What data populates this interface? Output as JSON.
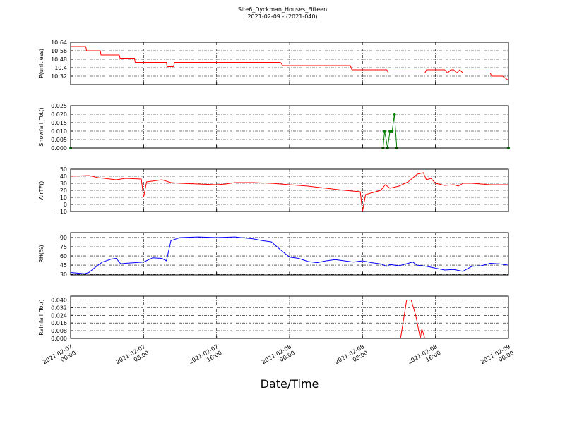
{
  "title": "Site6_Dyckman_Houses_Fifteen",
  "subtitle": "2021-02-09 - (2021-040)",
  "x_axis": {
    "label": "Date/Time",
    "xlim": [
      "2021-02-07 00:00",
      "2021-02-09 00:00"
    ],
    "xticks": [
      {
        "value": "2021-02-07 00:00",
        "label": [
          "2021-02-07",
          "00:00"
        ]
      },
      {
        "value": "2021-02-07 08:00",
        "label": [
          "2021-02-07",
          "08:00"
        ]
      },
      {
        "value": "2021-02-07 16:00",
        "label": [
          "2021-02-07",
          "16:00"
        ]
      },
      {
        "value": "2021-02-08 00:00",
        "label": [
          "2021-02-08",
          "00:00"
        ]
      },
      {
        "value": "2021-02-08 08:00",
        "label": [
          "2021-02-08",
          "08:00"
        ]
      },
      {
        "value": "2021-02-08 16:00",
        "label": [
          "2021-02-08",
          "16:00"
        ]
      },
      {
        "value": "2021-02-09 00:00",
        "label": [
          "2021-02-09",
          "00:00"
        ]
      }
    ]
  },
  "chart_data": [
    {
      "type": "line",
      "ylabel": "P(unitless)",
      "color": "#ff0000",
      "grid": true,
      "ylim": [
        10.24,
        10.64
      ],
      "yticks": [
        10.32,
        10.4,
        10.48,
        10.56,
        10.64
      ],
      "x": [
        "2021-02-07 00:00",
        "2021-02-07 01:40",
        "2021-02-07 01:45",
        "2021-02-07 03:15",
        "2021-02-07 03:20",
        "2021-02-07 05:20",
        "2021-02-07 05:25",
        "2021-02-07 07:00",
        "2021-02-07 07:05",
        "2021-02-07 10:30",
        "2021-02-07 10:35",
        "2021-02-07 11:15",
        "2021-02-07 11:25",
        "2021-02-07 23:00",
        "2021-02-07 23:15",
        "2021-02-08 06:40",
        "2021-02-08 06:50",
        "2021-02-08 10:40",
        "2021-02-08 10:50",
        "2021-02-08 14:50",
        "2021-02-08 15:00",
        "2021-02-08 17:00",
        "2021-02-08 17:20",
        "2021-02-08 17:40",
        "2021-02-08 18:00",
        "2021-02-08 18:20",
        "2021-02-08 18:40",
        "2021-02-08 19:00",
        "2021-02-08 22:00",
        "2021-02-08 22:10",
        "2021-02-08 23:20",
        "2021-02-09 00:00"
      ],
      "values": [
        10.6,
        10.6,
        10.56,
        10.56,
        10.52,
        10.52,
        10.49,
        10.49,
        10.45,
        10.45,
        10.41,
        10.41,
        10.45,
        10.45,
        10.42,
        10.42,
        10.38,
        10.38,
        10.35,
        10.35,
        10.38,
        10.38,
        10.35,
        10.38,
        10.38,
        10.35,
        10.38,
        10.35,
        10.35,
        10.32,
        10.32,
        10.28
      ]
    },
    {
      "type": "line",
      "ylabel": "Snowfall_Tot()",
      "color": "#007f00",
      "grid": true,
      "markers": true,
      "ylim": [
        0,
        0.025
      ],
      "yticks": [
        {
          "value": 0,
          "label": "0.000"
        },
        {
          "value": 0.005,
          "label": "0.005"
        },
        {
          "value": 0.01,
          "label": "0.010"
        },
        {
          "value": 0.015,
          "label": "0.015"
        },
        {
          "value": 0.02,
          "label": "0.020"
        },
        {
          "value": 0.025,
          "label": "0.025"
        }
      ],
      "x": [
        "2021-02-07 00:00",
        "2021-02-08 10:15",
        "2021-02-08 10:25",
        "2021-02-08 10:45",
        "2021-02-08 11:00",
        "2021-02-08 11:15",
        "2021-02-08 11:30",
        "2021-02-08 11:45",
        "2021-02-09 00:00"
      ],
      "values": [
        0,
        0,
        0.01,
        0,
        0.01,
        0.01,
        0.02,
        0,
        0
      ]
    },
    {
      "type": "line",
      "ylabel": "AirTF()",
      "color": "#ff0000",
      "grid": true,
      "ylim": [
        -10,
        50
      ],
      "yticks": [
        {
          "value": -10,
          "label": "−10"
        },
        0,
        10,
        20,
        30,
        40,
        50
      ],
      "x": [
        "2021-02-07 00:00",
        "2021-02-07 02:00",
        "2021-02-07 03:00",
        "2021-02-07 05:00",
        "2021-02-07 06:00",
        "2021-02-07 07:45",
        "2021-02-07 08:00",
        "2021-02-07 08:20",
        "2021-02-07 09:30",
        "2021-02-07 10:00",
        "2021-02-07 11:00",
        "2021-02-07 12:00",
        "2021-02-07 14:00",
        "2021-02-07 16:00",
        "2021-02-07 17:00",
        "2021-02-07 18:00",
        "2021-02-07 20:00",
        "2021-02-07 22:00",
        "2021-02-08 00:00",
        "2021-02-08 02:00",
        "2021-02-08 04:00",
        "2021-02-08 06:00",
        "2021-02-08 07:45",
        "2021-02-08 08:00",
        "2021-02-08 08:20",
        "2021-02-08 10:00",
        "2021-02-08 10:30",
        "2021-02-08 11:00",
        "2021-02-08 12:00",
        "2021-02-08 13:00",
        "2021-02-08 14:00",
        "2021-02-08 14:40",
        "2021-02-08 15:00",
        "2021-02-08 15:30",
        "2021-02-08 16:00",
        "2021-02-08 17:00",
        "2021-02-08 18:00",
        "2021-02-08 18:30",
        "2021-02-08 19:00",
        "2021-02-08 20:00",
        "2021-02-08 22:00",
        "2021-02-09 00:00"
      ],
      "values": [
        40,
        41,
        38,
        35,
        37,
        36,
        10,
        32,
        34,
        35,
        31,
        30,
        29,
        28,
        29,
        31,
        31,
        30,
        28,
        26,
        23,
        20,
        18,
        -10,
        14,
        20,
        28,
        23,
        26,
        32,
        43,
        45,
        35,
        37,
        30,
        27,
        28,
        26,
        30,
        30,
        28,
        28
      ]
    },
    {
      "type": "line",
      "ylabel": "RH(%)",
      "color": "#0000ff",
      "grid": true,
      "ylim": [
        29,
        98
      ],
      "yticks": [
        30,
        45,
        60,
        75,
        90
      ],
      "x": [
        "2021-02-07 00:00",
        "2021-02-07 01:30",
        "2021-02-07 02:00",
        "2021-02-07 03:00",
        "2021-02-07 03:30",
        "2021-02-07 04:30",
        "2021-02-07 05:00",
        "2021-02-07 05:30",
        "2021-02-07 06:00",
        "2021-02-07 08:00",
        "2021-02-07 09:00",
        "2021-02-07 10:00",
        "2021-02-07 10:30",
        "2021-02-07 11:00",
        "2021-02-07 12:00",
        "2021-02-07 14:00",
        "2021-02-07 16:00",
        "2021-02-07 18:00",
        "2021-02-07 20:00",
        "2021-02-07 21:00",
        "2021-02-07 22:00",
        "2021-02-07 23:00",
        "2021-02-08 00:00",
        "2021-02-08 01:00",
        "2021-02-08 02:00",
        "2021-02-08 03:00",
        "2021-02-08 04:00",
        "2021-02-08 05:00",
        "2021-02-08 06:00",
        "2021-02-08 07:00",
        "2021-02-08 08:00",
        "2021-02-08 09:00",
        "2021-02-08 10:00",
        "2021-02-08 10:40",
        "2021-02-08 11:00",
        "2021-02-08 12:00",
        "2021-02-08 13:00",
        "2021-02-08 13:30",
        "2021-02-08 14:00",
        "2021-02-08 15:00",
        "2021-02-08 16:00",
        "2021-02-08 17:00",
        "2021-02-08 18:00",
        "2021-02-08 19:00",
        "2021-02-08 20:00",
        "2021-02-08 21:00",
        "2021-02-08 22:00",
        "2021-02-08 23:00",
        "2021-02-09 00:00"
      ],
      "values": [
        33,
        31,
        33,
        45,
        50,
        55,
        56,
        47,
        48,
        50,
        57,
        56,
        52,
        85,
        90,
        91,
        90,
        91,
        88,
        85,
        83,
        70,
        58,
        56,
        51,
        49,
        52,
        54,
        52,
        50,
        52,
        49,
        47,
        43,
        46,
        44,
        48,
        50,
        45,
        43,
        40,
        37,
        38,
        35,
        43,
        44,
        48,
        47,
        45
      ]
    },
    {
      "type": "line",
      "ylabel": "Rainfall_Tot()",
      "color": "#ff0000",
      "grid": true,
      "ylim": [
        0,
        0.044
      ],
      "yticks": [
        {
          "value": 0,
          "label": "0.000"
        },
        {
          "value": 0.008,
          "label": "0.008"
        },
        {
          "value": 0.016,
          "label": "0.016"
        },
        {
          "value": 0.024,
          "label": "0.024"
        },
        {
          "value": 0.032,
          "label": "0.032"
        },
        {
          "value": 0.04,
          "label": "0.040"
        }
      ],
      "x": [
        "2021-02-07 00:00",
        "2021-02-08 12:10",
        "2021-02-08 12:50",
        "2021-02-08 13:20",
        "2021-02-08 13:50",
        "2021-02-08 14:20",
        "2021-02-08 14:30",
        "2021-02-08 14:50",
        "2021-02-09 00:00"
      ],
      "values": [
        0,
        0,
        0.04,
        0.04,
        0.024,
        0,
        0.01,
        0,
        0
      ]
    }
  ]
}
